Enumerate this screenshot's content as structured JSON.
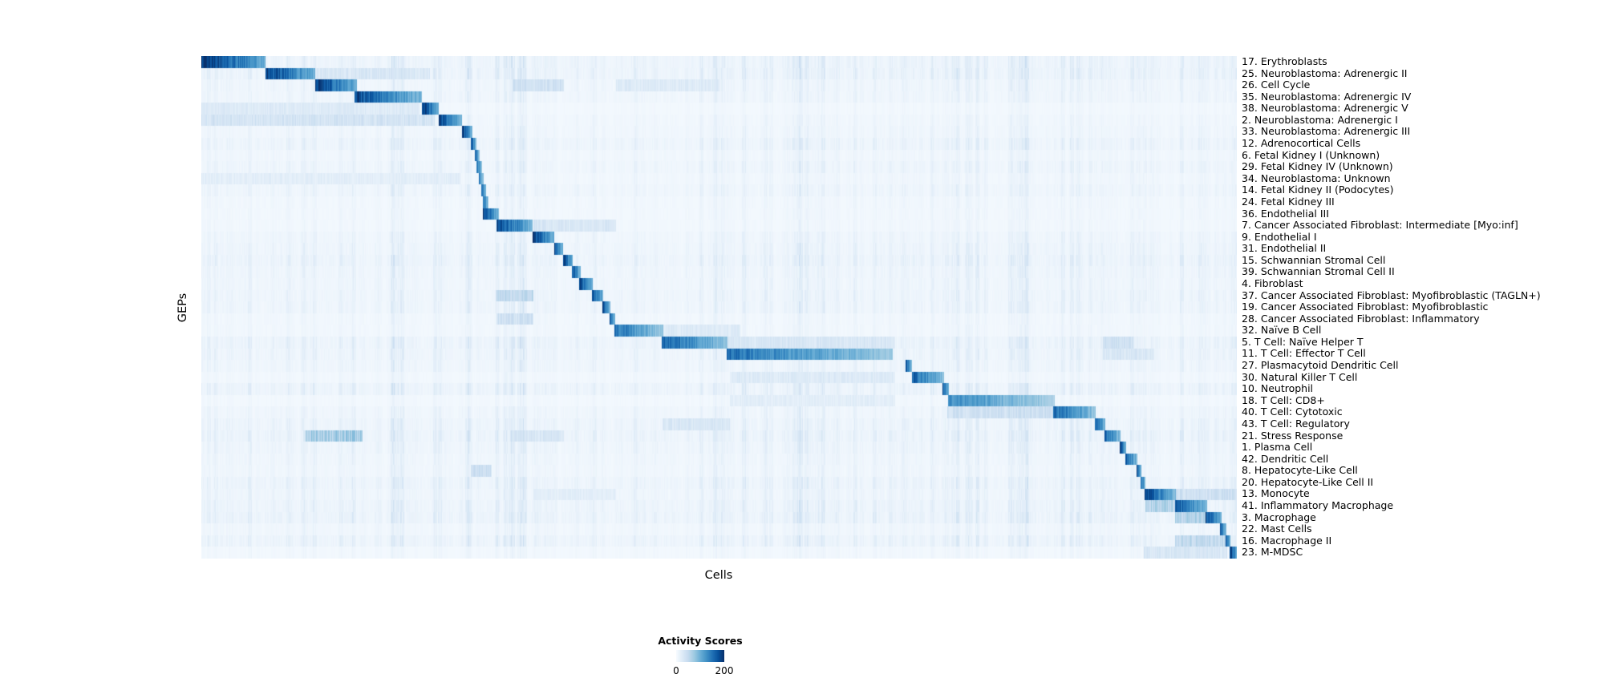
{
  "chart_data": {
    "type": "heatmap",
    "title": "",
    "xlabel": "Cells",
    "ylabel": "GEPs",
    "colormap": "Blues",
    "value_range": [
      0,
      200
    ],
    "grid": false,
    "x_tick_labels": [],
    "legend": {
      "title": "Activity Scores",
      "position": "bottom-center",
      "ticks": [
        "0",
        "200"
      ]
    },
    "colors": {
      "low": "#f7fbff",
      "mid": "#4292c6",
      "high": "#08306b",
      "background": "#ffffff"
    },
    "rows": [
      {
        "label": "17. Erythroblasts",
        "block": [
          0.0,
          0.062
        ],
        "peak": 200
      },
      {
        "label": "25. Neuroblastoma: Adrenergic II",
        "block": [
          0.062,
          0.11
        ],
        "peak": 190,
        "extras": [
          [
            0.11,
            0.22,
            30
          ]
        ]
      },
      {
        "label": "26. Cell Cycle",
        "block": [
          0.11,
          0.15
        ],
        "peak": 190,
        "extras": [
          [
            0.3,
            0.35,
            40
          ],
          [
            0.4,
            0.5,
            25
          ]
        ]
      },
      {
        "label": "35. Neuroblastoma: Adrenergic IV",
        "block": [
          0.148,
          0.213
        ],
        "peak": 180
      },
      {
        "label": "38. Neuroblastoma: Adrenergic V",
        "block": [
          0.213,
          0.229
        ],
        "peak": 190,
        "extras": [
          [
            0.0,
            0.21,
            25
          ]
        ]
      },
      {
        "label": "2. Neuroblastoma: Adrenergic I",
        "block": [
          0.229,
          0.252
        ],
        "peak": 180,
        "extras": [
          [
            0.0,
            0.225,
            35
          ]
        ]
      },
      {
        "label": "33. Neuroblastoma: Adrenergic III",
        "block": [
          0.252,
          0.262
        ],
        "peak": 180
      },
      {
        "label": "12. Adrenocortical Cells",
        "block": [
          0.26,
          0.266
        ],
        "peak": 170
      },
      {
        "label": "6. Fetal Kidney I (Unknown)",
        "block": [
          0.264,
          0.269
        ],
        "peak": 160
      },
      {
        "label": "29. Fetal Kidney IV (Unknown)",
        "block": [
          0.266,
          0.271
        ],
        "peak": 150
      },
      {
        "label": "34. Neuroblastoma: Unknown",
        "block": [
          0.268,
          0.273
        ],
        "peak": 140,
        "extras": [
          [
            0.0,
            0.25,
            20
          ]
        ]
      },
      {
        "label": "14. Fetal Kidney II (Podocytes)",
        "block": [
          0.27,
          0.275
        ],
        "peak": 160
      },
      {
        "label": "24. Fetal Kidney III",
        "block": [
          0.272,
          0.277
        ],
        "peak": 150
      },
      {
        "label": "36. Endothelial III",
        "block": [
          0.272,
          0.287
        ],
        "peak": 180
      },
      {
        "label": "7. Cancer Associated Fibroblast: Intermediate [Myo:inf]",
        "block": [
          0.285,
          0.32
        ],
        "peak": 180,
        "extras": [
          [
            0.32,
            0.4,
            30
          ]
        ]
      },
      {
        "label": "9. Endothelial I",
        "block": [
          0.32,
          0.341
        ],
        "peak": 190
      },
      {
        "label": "31. Endothelial II",
        "block": [
          0.341,
          0.349
        ],
        "peak": 180
      },
      {
        "label": "15. Schwannian Stromal Cell",
        "block": [
          0.349,
          0.359
        ],
        "peak": 180
      },
      {
        "label": "39. Schwannian Stromal Cell II",
        "block": [
          0.358,
          0.366
        ],
        "peak": 170
      },
      {
        "label": "4. Fibroblast",
        "block": [
          0.365,
          0.378
        ],
        "peak": 180
      },
      {
        "label": "37. Cancer Associated Fibroblast: Myofibroblastic (TAGLN+)",
        "block": [
          0.377,
          0.388
        ],
        "peak": 180,
        "extras": [
          [
            0.285,
            0.32,
            50
          ]
        ]
      },
      {
        "label": "19. Cancer Associated Fibroblast: Myofibroblastic",
        "block": [
          0.387,
          0.395
        ],
        "peak": 170
      },
      {
        "label": "28. Cancer Associated Fibroblast: Inflammatory",
        "block": [
          0.394,
          0.4
        ],
        "peak": 160,
        "extras": [
          [
            0.285,
            0.32,
            40
          ]
        ]
      },
      {
        "label": "32. Naïve B Cell",
        "block": [
          0.399,
          0.446
        ],
        "peak": 150,
        "extras": [
          [
            0.446,
            0.52,
            25
          ]
        ]
      },
      {
        "label": "5. T Cell: Naïve Helper T",
        "block": [
          0.445,
          0.508
        ],
        "peak": 160,
        "extras": [
          [
            0.508,
            0.67,
            30
          ],
          [
            0.87,
            0.9,
            40
          ]
        ]
      },
      {
        "label": "11. T Cell: Effector T Cell",
        "block": [
          0.507,
          0.668
        ],
        "peak": 150,
        "extras": [
          [
            0.87,
            0.92,
            30
          ]
        ]
      },
      {
        "label": "27. Plasmacytoid Dendritic Cell",
        "block": [
          0.68,
          0.686
        ],
        "peak": 170
      },
      {
        "label": "30. Natural Killer T Cell",
        "block": [
          0.686,
          0.717
        ],
        "peak": 160,
        "extras": [
          [
            0.51,
            0.67,
            25
          ]
        ]
      },
      {
        "label": "10. Neutrophil",
        "block": [
          0.716,
          0.722
        ],
        "peak": 170
      },
      {
        "label": "18. T Cell: CD8+",
        "block": [
          0.721,
          0.824
        ],
        "peak": 130,
        "extras": [
          [
            0.51,
            0.67,
            20
          ]
        ]
      },
      {
        "label": "40. T Cell: Cytotoxic",
        "block": [
          0.823,
          0.864
        ],
        "peak": 160,
        "extras": [
          [
            0.72,
            0.823,
            40
          ]
        ]
      },
      {
        "label": "43. T Cell: Regulatory",
        "block": [
          0.863,
          0.873
        ],
        "peak": 170,
        "extras": [
          [
            0.445,
            0.51,
            30
          ]
        ]
      },
      {
        "label": "21. Stress Response",
        "block": [
          0.872,
          0.888
        ],
        "peak": 160,
        "extras": [
          [
            0.1,
            0.155,
            70
          ],
          [
            0.3,
            0.35,
            30
          ]
        ]
      },
      {
        "label": "1. Plasma Cell",
        "block": [
          0.887,
          0.893
        ],
        "peak": 180
      },
      {
        "label": "42. Dendritic Cell",
        "block": [
          0.892,
          0.904
        ],
        "peak": 170
      },
      {
        "label": "8. Hepatocyte-Like Cell",
        "block": [
          0.903,
          0.908
        ],
        "peak": 170,
        "extras": [
          [
            0.26,
            0.28,
            40
          ]
        ]
      },
      {
        "label": "20. Hepatocyte-Like Cell II",
        "block": [
          0.907,
          0.912
        ],
        "peak": 160
      },
      {
        "label": "13. Monocyte",
        "block": [
          0.911,
          0.941
        ],
        "peak": 180,
        "extras": [
          [
            0.32,
            0.4,
            20
          ],
          [
            0.941,
            1.0,
            40
          ]
        ]
      },
      {
        "label": "41. Inflammatory Macrophage",
        "block": [
          0.94,
          0.971
        ],
        "peak": 170,
        "extras": [
          [
            0.911,
            0.94,
            60
          ]
        ]
      },
      {
        "label": "3. Macrophage",
        "block": [
          0.97,
          0.985
        ],
        "peak": 180,
        "extras": [
          [
            0.94,
            0.97,
            60
          ]
        ]
      },
      {
        "label": "22. Mast Cells",
        "block": [
          0.984,
          0.99
        ],
        "peak": 170
      },
      {
        "label": "16. Macrophage II",
        "block": [
          0.989,
          0.994
        ],
        "peak": 160,
        "extras": [
          [
            0.94,
            0.989,
            50
          ]
        ]
      },
      {
        "label": "23. M-MDSC",
        "block": [
          0.993,
          1.0
        ],
        "peak": 190,
        "extras": [
          [
            0.91,
            0.99,
            30
          ]
        ]
      }
    ]
  }
}
